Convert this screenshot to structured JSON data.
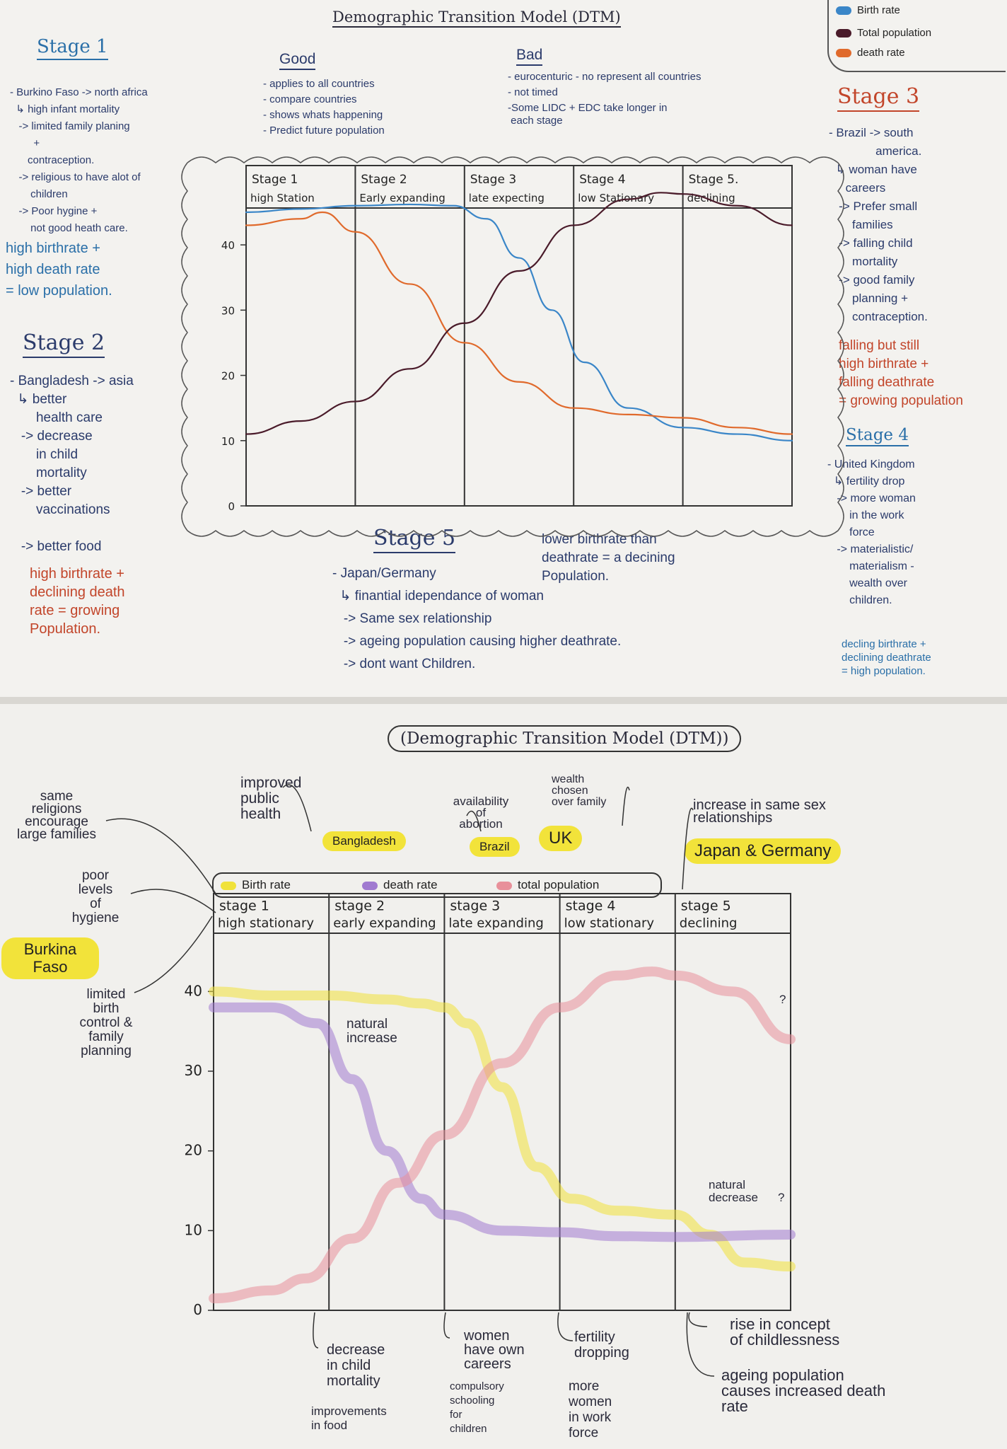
{
  "top": {
    "title": "Demographic Transition Model (DTM)",
    "legend": [
      {
        "label": "Birth rate",
        "color": "#3a86c8",
        "icon": "blue-swatch-icon"
      },
      {
        "label": "Total population",
        "color": "#4a1b2a",
        "icon": "maroon-swatch-icon"
      },
      {
        "label": "death rate",
        "color": "#e06a2c",
        "icon": "orange-swatch-icon"
      }
    ],
    "good": {
      "heading": "Good",
      "items": [
        "- applies to all countries",
        "- compare countries",
        "- shows whats happening",
        "- Predict future population"
      ]
    },
    "bad": {
      "heading": "Bad",
      "items": [
        "- eurocenturic - no represent all countries",
        "- not timed",
        "-Some LIDC + EDC take longer in",
        " each stage"
      ]
    },
    "stage1": {
      "heading": "Stage 1",
      "lines": [
        "- Burkino Faso -> north africa",
        "  ↳ high infant mortality",
        "   -> limited family planing",
        "        +",
        "      contraception.",
        "   -> religious to have alot of",
        "       children",
        "   -> Poor hygine +",
        "       not good heath care."
      ],
      "summary": [
        "high birthrate +",
        "high death rate",
        "= low population."
      ]
    },
    "stage2": {
      "heading": "Stage 2",
      "lines": [
        "- Bangladesh -> asia",
        "  ↳ better",
        "       health care",
        "   -> decrease",
        "       in child",
        "       mortality",
        "   -> better",
        "       vaccinations",
        "",
        "   -> better food"
      ],
      "summary": [
        "high birthrate +",
        "declining death",
        "rate = growing",
        "Population."
      ]
    },
    "stage3": {
      "heading": "Stage 3",
      "lines": [
        "- Brazil -> south",
        "              america.",
        "  ↳ woman have",
        "     careers",
        "   -> Prefer small",
        "       families",
        "   -> falling child",
        "       mortality",
        "   -> good family",
        "       planning +",
        "       contraception."
      ],
      "summary": [
        "falling but still",
        "high birthrate +",
        "falling deathrate",
        "= growing population"
      ]
    },
    "stage4": {
      "heading": "Stage 4",
      "lines": [
        "- United Kingdom",
        "  ↳ fertility drop",
        "   -> more woman",
        "       in the work",
        "       force",
        "   -> materialistic/",
        "       materialism -",
        "       wealth over",
        "       children."
      ],
      "summary": [
        "decling birthrate +",
        "declining deathrate",
        "= high population."
      ]
    },
    "stage5": {
      "heading": "Stage 5",
      "note": [
        "lower birthrate than",
        "deathrate = a decining",
        "Population."
      ],
      "lines": [
        "- Japan/Germany",
        "  ↳ finantial idependance of woman",
        "   -> Same sex relationship",
        "   -> ageing population causing higher deathrate.",
        "   -> dont want Children."
      ]
    }
  },
  "bottom": {
    "title": "(Demographic Transition Model (DTM))",
    "legend": [
      {
        "label": "Birth rate",
        "color": "#f0e23a",
        "icon": "yellow-swatch-icon"
      },
      {
        "label": "death rate",
        "color": "#a07ad0",
        "icon": "purple-swatch-icon"
      },
      {
        "label": "total population",
        "color": "#e8909a",
        "icon": "pink-swatch-icon"
      }
    ],
    "countries": [
      "Burkina Faso",
      "Bangladesh",
      "Brazil",
      "UK",
      "Japan & Germany"
    ],
    "annotations_top": {
      "religion": [
        "same",
        "religions",
        "encourage",
        "large families"
      ],
      "hygiene": [
        "poor",
        "levels",
        "of",
        "hygiene"
      ],
      "birth_control": [
        "limited",
        "birth",
        "control &",
        "family",
        "planning"
      ],
      "public_health": [
        "improved",
        "public",
        "health"
      ],
      "abortion": [
        "availability",
        "of",
        "abortion"
      ],
      "wealth": [
        "wealth",
        "chosen",
        "over family"
      ],
      "same_sex": [
        "increase in same sex",
        "relationships"
      ],
      "natural_increase": [
        "natural",
        "increase"
      ],
      "natural_decrease": [
        "natural",
        "decrease"
      ],
      "question": "?"
    },
    "annotations_bottom": {
      "stage2a": [
        "decrease",
        "in child",
        "mortality"
      ],
      "stage2b": [
        "improvements",
        "in food"
      ],
      "stage3a": [
        "women",
        "have own",
        "careers"
      ],
      "stage3b": [
        "compulsory",
        "schooling",
        "for",
        "children"
      ],
      "stage4a": [
        "fertility",
        "dropping"
      ],
      "stage4b": [
        "more",
        "women",
        "in work",
        "force"
      ],
      "stage5a": [
        "rise in concept",
        "of childlessness"
      ],
      "stage5b": [
        "ageing population",
        "causes increased death",
        "rate"
      ]
    }
  },
  "chart_data": [
    {
      "type": "line",
      "title": "Demographic Transition Model (DTM)",
      "stages": [
        {
          "name": "Stage 1",
          "sub": "high Station"
        },
        {
          "name": "Stage 2",
          "sub": "Early expanding"
        },
        {
          "name": "Stage 3",
          "sub": "late expecting"
        },
        {
          "name": "Stage 4",
          "sub": "low Stationary"
        },
        {
          "name": "Stage 5.",
          "sub": "declining"
        }
      ],
      "yticks": [
        0,
        10,
        20,
        30,
        40
      ],
      "ylim": [
        0,
        45
      ],
      "xlim": [
        0,
        5
      ],
      "series": [
        {
          "name": "Birth rate",
          "color": "#3a86c8",
          "x": [
            0,
            0.5,
            1,
            1.5,
            1.9,
            2.2,
            2.5,
            2.8,
            3.1,
            3.5,
            4,
            4.5,
            5
          ],
          "y": [
            45,
            45.5,
            46,
            46.2,
            46,
            44,
            38,
            30,
            22,
            15,
            12,
            11,
            10
          ]
        },
        {
          "name": "death rate",
          "color": "#e06a2c",
          "x": [
            0,
            0.5,
            0.7,
            1,
            1.5,
            2,
            2.5,
            3,
            3.5,
            4,
            4.5,
            5
          ],
          "y": [
            43,
            44,
            45,
            42,
            34,
            25,
            19,
            15,
            14,
            13.5,
            12,
            11
          ]
        },
        {
          "name": "Total Population",
          "color": "#4a1b2a",
          "x": [
            0,
            0.5,
            1,
            1.5,
            2,
            2.5,
            3,
            3.5,
            3.8,
            4,
            4.5,
            5
          ],
          "y": [
            11,
            13,
            16,
            21,
            28,
            36,
            43,
            47,
            48,
            47.8,
            46,
            43
          ]
        }
      ]
    },
    {
      "type": "line",
      "title": "(Demographic Transition Model (DTM))",
      "stages": [
        {
          "name": "stage 1",
          "sub": "high stationary"
        },
        {
          "name": "stage 2",
          "sub": "early expanding"
        },
        {
          "name": "stage 3",
          "sub": "late expanding"
        },
        {
          "name": "stage 4",
          "sub": "low stationary"
        },
        {
          "name": "stage 5",
          "sub": "declining"
        }
      ],
      "yticks": [
        0,
        10,
        20,
        30,
        40
      ],
      "ylim": [
        0,
        45
      ],
      "xlim": [
        0,
        5
      ],
      "series": [
        {
          "name": "Birth rate",
          "color": "#f0e23a",
          "x": [
            0,
            0.5,
            1,
            1.5,
            1.8,
            2,
            2.2,
            2.5,
            2.8,
            3.1,
            3.5,
            4,
            4.3,
            4.6,
            5
          ],
          "y": [
            40,
            39.5,
            39.5,
            39,
            38.5,
            38,
            36,
            28,
            18,
            14,
            12.5,
            12,
            9.5,
            6,
            5.5
          ]
        },
        {
          "name": "death rate",
          "color": "#a07ad0",
          "x": [
            0,
            0.5,
            0.9,
            1.2,
            1.5,
            1.8,
            2,
            2.5,
            3,
            3.5,
            4,
            5
          ],
          "y": [
            38,
            38,
            36,
            29,
            20,
            14,
            12,
            10,
            9.8,
            9.3,
            9.2,
            9.5
          ]
        },
        {
          "name": "total population",
          "color": "#e8909a",
          "x": [
            0,
            0.5,
            0.8,
            1.2,
            1.6,
            2,
            2.5,
            3,
            3.5,
            3.8,
            4,
            4.5,
            5
          ],
          "y": [
            1.5,
            2.5,
            4,
            9,
            16,
            22,
            31,
            38,
            42,
            42.5,
            42,
            40,
            34
          ]
        }
      ]
    }
  ]
}
